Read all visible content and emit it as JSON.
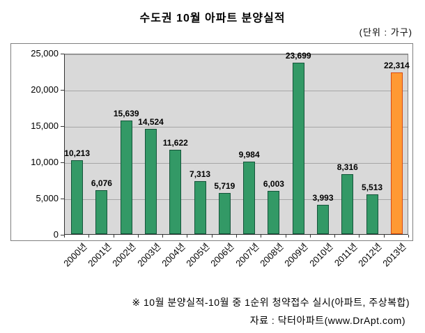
{
  "title": "수도권 10월 아파트 분양실적",
  "unit_note": "(단위 : 가구)",
  "footer": {
    "note": "※ 10월 분양실적-10월 중 1순위 청약접수 실시(아파트, 주상복합)",
    "source": "자료 : 닥터아파트(www.DrApt.com)"
  },
  "chart_data": {
    "type": "bar",
    "title": "수도권 10월 아파트 분양실적",
    "categories": [
      "2000년",
      "2001년",
      "2002년",
      "2003년",
      "2004년",
      "2005년",
      "2006년",
      "2007년",
      "2008년",
      "2009년",
      "2010년",
      "2011년",
      "2012년",
      "2013년"
    ],
    "values": [
      10213,
      6076,
      15639,
      14524,
      11622,
      7313,
      5719,
      9984,
      6003,
      23699,
      3993,
      8316,
      5513,
      22314
    ],
    "xlabel": "",
    "ylabel": "",
    "ylim": [
      0,
      25000
    ],
    "yticks": [
      0,
      5000,
      10000,
      15000,
      20000,
      25000
    ],
    "grid": true,
    "legend": "none",
    "plot_background": "#d9d9d9",
    "bar_color": "#339966",
    "bar_border": "#14543a",
    "highlight_index": 13,
    "highlight_color": "#ff9933",
    "highlight_border": "#d9480f"
  }
}
